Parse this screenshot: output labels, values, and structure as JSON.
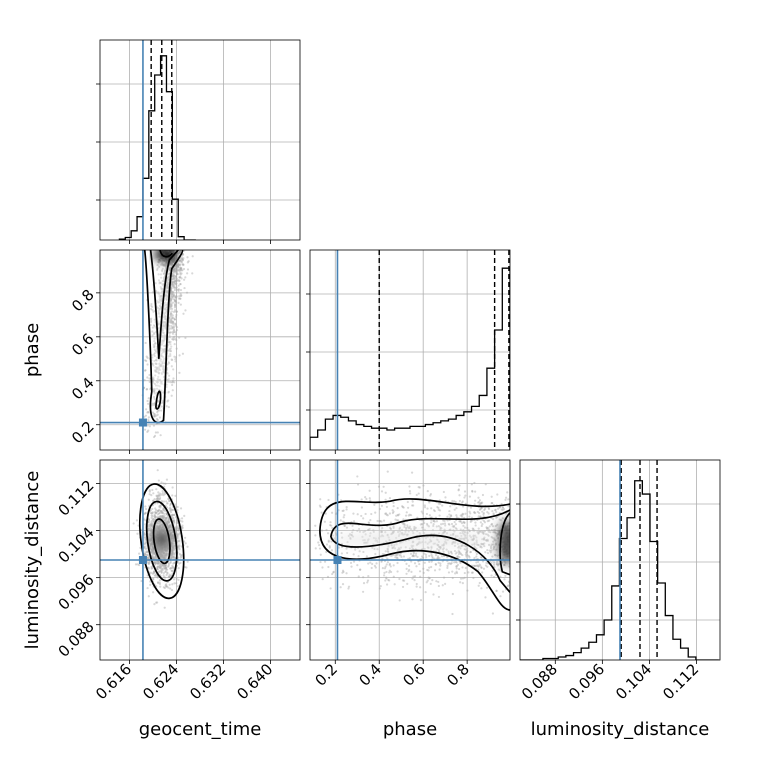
{
  "chart_data": {
    "type": "corner",
    "parameters": [
      {
        "key": "geocent_time",
        "label": "geocent_time",
        "range": [
          0.611,
          0.645
        ],
        "ticks": [
          0.616,
          0.624,
          0.632,
          0.64
        ],
        "tick_labels": [
          "0.616",
          "0.624",
          "0.632",
          "0.640"
        ],
        "truth": 0.6183,
        "quantiles": [
          0.6197,
          0.6215,
          0.6232
        ]
      },
      {
        "key": "phase",
        "label": "phase",
        "range": [
          0.085,
          0.995
        ],
        "ticks": [
          0.2,
          0.4,
          0.6,
          0.8
        ],
        "tick_labels": [
          "0.2",
          "0.4",
          "0.6",
          "0.8"
        ],
        "truth": 0.21,
        "quantiles": [
          0.4,
          0.925,
          0.99
        ]
      },
      {
        "key": "luminosity_distance",
        "label": "luminosity_distance",
        "range": [
          0.082,
          0.116
        ],
        "ticks": [
          0.088,
          0.096,
          0.104,
          0.112
        ],
        "tick_labels": [
          "0.088",
          "0.096",
          "0.104",
          "0.112"
        ],
        "truth": 0.099,
        "quantiles": [
          0.0992,
          0.1024,
          0.1053
        ]
      }
    ],
    "histograms": {
      "geocent_time": {
        "bin_edges": [
          0.6143,
          0.6153,
          0.6163,
          0.6173,
          0.6183,
          0.6193,
          0.6203,
          0.6213,
          0.6223,
          0.6233,
          0.6243,
          0.6253,
          0.6263,
          0.6273
        ],
        "counts": [
          1,
          3,
          11,
          28,
          74,
          155,
          198,
          221,
          178,
          49,
          4,
          0,
          0
        ],
        "ymax": 240
      },
      "phase": {
        "bin_edges": [
          0.085,
          0.12,
          0.155,
          0.19,
          0.225,
          0.26,
          0.295,
          0.33,
          0.365,
          0.4,
          0.435,
          0.47,
          0.505,
          0.54,
          0.575,
          0.61,
          0.645,
          0.68,
          0.715,
          0.75,
          0.785,
          0.82,
          0.855,
          0.89,
          0.925,
          0.96,
          0.995
        ],
        "counts": [
          7,
          11,
          17,
          19,
          18,
          16,
          14,
          13,
          12,
          12,
          11,
          12,
          12,
          13,
          13,
          14,
          15,
          16,
          17,
          19,
          21,
          24,
          30,
          45,
          66,
          100
        ],
        "ymax": 110
      },
      "luminosity_distance": {
        "bin_edges": [
          0.082,
          0.0833,
          0.0846,
          0.0859,
          0.0872,
          0.0885,
          0.0898,
          0.0911,
          0.0924,
          0.0937,
          0.095,
          0.0963,
          0.0976,
          0.0989,
          0.1002,
          0.1015,
          0.1028,
          0.1041,
          0.1054,
          0.1067,
          0.108,
          0.1093,
          0.1106,
          0.1119,
          0.1132,
          0.1145,
          0.1158
        ],
        "counts": [
          0,
          0,
          0,
          1,
          1,
          2,
          3,
          5,
          8,
          12,
          17,
          27,
          50,
          82,
          96,
          121,
          112,
          80,
          52,
          30,
          14,
          8,
          2,
          0,
          0,
          0
        ],
        "ymax": 135
      }
    },
    "scatter_color": "#a9a9a9",
    "contour_color": "#000000",
    "truth_color": "#4682b4",
    "quantile_color": "#000000",
    "grid": true
  }
}
